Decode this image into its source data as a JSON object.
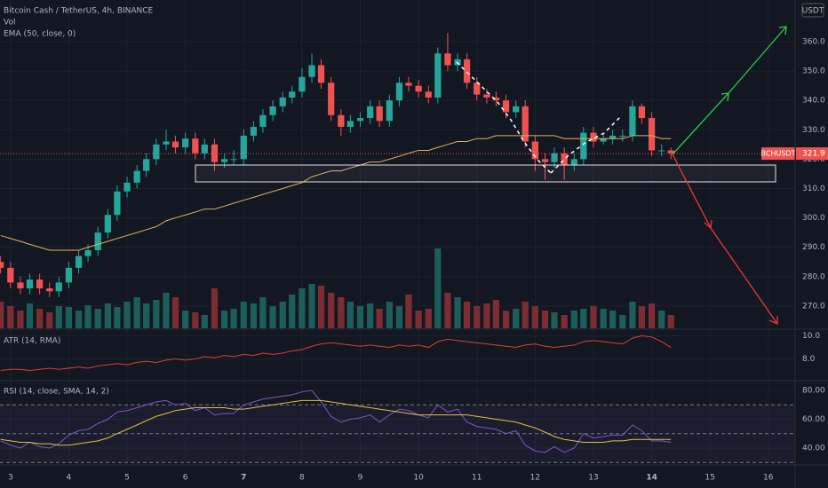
{
  "chart_data": [
    {
      "type": "candlestick",
      "title": "Bitcoin Cash / TetherUS, 4h, BINANCE",
      "axis_unit": "USDT",
      "x": [
        2.83,
        3,
        3.17,
        3.33,
        3.5,
        3.67,
        3.83,
        4,
        4.17,
        4.33,
        4.5,
        4.67,
        4.83,
        5,
        5.17,
        5.33,
        5.5,
        5.67,
        5.83,
        6,
        6.17,
        6.33,
        6.5,
        6.67,
        6.83,
        7,
        7.17,
        7.33,
        7.5,
        7.67,
        7.83,
        8,
        8.17,
        8.33,
        8.5,
        8.67,
        8.83,
        9,
        9.17,
        9.33,
        9.5,
        9.67,
        9.83,
        10,
        10.17,
        10.33,
        10.5,
        10.67,
        10.83,
        11,
        11.17,
        11.33,
        11.5,
        11.67,
        11.83,
        12,
        12.17,
        12.33,
        12.5,
        12.67,
        12.83,
        13,
        13.17,
        13.33,
        13.5,
        13.67,
        13.83,
        14,
        14.17,
        14.33
      ],
      "open": [
        285,
        283,
        278,
        276,
        279,
        276,
        275,
        278,
        283,
        287,
        289,
        295,
        301,
        309,
        312,
        316,
        320,
        325,
        326,
        324,
        327,
        322,
        325,
        319,
        320,
        320,
        328,
        331,
        335,
        338,
        341,
        343,
        348,
        352,
        346,
        335,
        331,
        333,
        334,
        338,
        333,
        340,
        346,
        345,
        343,
        341,
        356,
        352,
        354,
        346,
        342,
        341,
        340,
        336,
        338,
        326,
        320,
        319,
        322,
        318,
        320,
        329,
        326,
        327,
        328,
        328,
        338,
        334,
        323,
        323
      ],
      "high": [
        287,
        285,
        280,
        281,
        281,
        278,
        280,
        285,
        289,
        291,
        297,
        303,
        311,
        314,
        318,
        322,
        327,
        330,
        328,
        329,
        329,
        327,
        327,
        322,
        323,
        330,
        333,
        337,
        340,
        343,
        345,
        351,
        356,
        354,
        348,
        337,
        335,
        336,
        340,
        340,
        342,
        348,
        348,
        347,
        345,
        358,
        363,
        356,
        356,
        348,
        344,
        343,
        342,
        340,
        340,
        328,
        322,
        324,
        324,
        322,
        331,
        331,
        329,
        330,
        330,
        340,
        339,
        336,
        325,
        324
      ],
      "low": [
        281,
        276,
        274,
        274,
        274,
        273,
        273,
        276,
        281,
        285,
        287,
        293,
        299,
        307,
        310,
        314,
        318,
        323,
        322,
        322,
        320,
        320,
        316,
        317,
        318,
        318,
        326,
        329,
        333,
        336,
        339,
        341,
        346,
        344,
        333,
        328,
        329,
        331,
        332,
        331,
        331,
        338,
        343,
        341,
        339,
        339,
        350,
        350,
        344,
        340,
        339,
        338,
        334,
        334,
        324,
        316,
        313,
        317,
        313,
        316,
        318,
        324,
        325,
        325,
        326,
        326,
        332,
        321,
        321,
        320
      ],
      "close": [
        283,
        278,
        276,
        279,
        276,
        275,
        278,
        283,
        287,
        289,
        295,
        301,
        309,
        312,
        316,
        320,
        325,
        326,
        324,
        327,
        322,
        325,
        319,
        320,
        320,
        328,
        331,
        335,
        338,
        341,
        343,
        348,
        352,
        346,
        335,
        331,
        333,
        334,
        338,
        333,
        340,
        346,
        345,
        343,
        341,
        356,
        352,
        354,
        346,
        342,
        341,
        340,
        336,
        338,
        326,
        320,
        319,
        322,
        318,
        320,
        329,
        326,
        327,
        328,
        328,
        338,
        334,
        323,
        323,
        322
      ],
      "up_color": "#26a69a",
      "down_color": "#ef5350",
      "series": [
        {
          "name": "Vol",
          "type": "volume",
          "values": [
            30,
            25,
            20,
            28,
            22,
            18,
            25,
            24,
            20,
            26,
            22,
            28,
            24,
            30,
            35,
            28,
            32,
            40,
            35,
            20,
            18,
            15,
            45,
            20,
            22,
            30,
            28,
            35,
            25,
            30,
            38,
            45,
            50,
            48,
            40,
            35,
            30,
            25,
            28,
            22,
            30,
            25,
            38,
            20,
            22,
            90,
            40,
            35,
            30,
            25,
            28,
            32,
            20,
            22,
            30,
            25,
            20,
            18,
            15,
            20,
            22,
            25,
            22,
            20,
            15,
            30,
            25,
            28,
            20,
            15
          ]
        },
        {
          "name": "EMA (50, close, 0)",
          "type": "line",
          "color": "#e0b060",
          "values": [
            294,
            293,
            292,
            291,
            290,
            289,
            289,
            289,
            289,
            290,
            291,
            292,
            293,
            294,
            295,
            296,
            297,
            299,
            300,
            301,
            302,
            303,
            303,
            304,
            305,
            306,
            307,
            308,
            309,
            310,
            311,
            312,
            314,
            315,
            316,
            316,
            317,
            318,
            319,
            319,
            320,
            321,
            322,
            323,
            323,
            324,
            325,
            326,
            326,
            327,
            327,
            328,
            328,
            328,
            328,
            328,
            328,
            328,
            327,
            327,
            327,
            327,
            327,
            327,
            327,
            328,
            328,
            328,
            327,
            327
          ]
        }
      ],
      "last_price": {
        "label": "BCHUSDT",
        "value": 321.9
      },
      "xlim": [
        2.82,
        16.46
      ],
      "xticks": [
        3,
        4,
        5,
        6,
        7,
        8,
        9,
        10,
        11,
        12,
        13,
        14,
        15,
        16
      ],
      "ylim": [
        262.4,
        374.2
      ],
      "yticks": [
        {
          "value": 270,
          "label": "270.0"
        },
        {
          "value": 280,
          "label": "280.0"
        },
        {
          "value": 290,
          "label": "290.0"
        },
        {
          "value": 300,
          "label": "300.0"
        },
        {
          "value": 310,
          "label": "310.0"
        },
        {
          "value": 320,
          "label": "320.0"
        },
        {
          "value": 330,
          "label": "330.0"
        },
        {
          "value": 340,
          "label": "340.0"
        },
        {
          "value": 350,
          "label": "350.0"
        },
        {
          "value": 360,
          "label": "360.0"
        }
      ]
    },
    {
      "type": "line",
      "series": [
        {
          "name": "ATR (14, RMA)",
          "color": "#e53935",
          "values": [
            7.0,
            7.1,
            7.1,
            7.0,
            7.1,
            7.2,
            7.1,
            7.2,
            7.3,
            7.2,
            7.4,
            7.5,
            7.6,
            7.5,
            7.7,
            7.8,
            7.7,
            7.9,
            8.0,
            7.9,
            8.0,
            8.2,
            8.1,
            8.3,
            8.2,
            8.4,
            8.3,
            8.5,
            8.4,
            8.5,
            8.7,
            8.8,
            9.1,
            9.3,
            9.4,
            9.3,
            9.2,
            9.1,
            9.2,
            9.1,
            9.0,
            9.2,
            9.1,
            9.2,
            9.0,
            9.5,
            9.7,
            9.6,
            9.5,
            9.4,
            9.3,
            9.2,
            9.1,
            9.0,
            9.2,
            9.3,
            9.1,
            9.0,
            9.1,
            9.2,
            9.5,
            9.6,
            9.5,
            9.4,
            9.3,
            9.8,
            10.0,
            9.9,
            9.5,
            9.0
          ]
        }
      ],
      "ylim": [
        6.2,
        10.5
      ],
      "yticks": [
        {
          "value": 10,
          "label": "10.0"
        },
        {
          "value": 8,
          "label": "8.0"
        }
      ]
    },
    {
      "type": "line",
      "series": [
        {
          "name": "RSI (14, close, SMA, 14, 2)",
          "color": "#7e57c2",
          "values": [
            45,
            42,
            40,
            44,
            41,
            40,
            43,
            49,
            52,
            53,
            57,
            60,
            65,
            66,
            68,
            70,
            72,
            73,
            70,
            71,
            66,
            68,
            63,
            64,
            64,
            70,
            72,
            74,
            75,
            76,
            77,
            79,
            80,
            72,
            62,
            58,
            60,
            61,
            63,
            58,
            63,
            67,
            66,
            63,
            61,
            70,
            65,
            67,
            58,
            55,
            54,
            53,
            50,
            52,
            42,
            38,
            37,
            41,
            37,
            40,
            50,
            47,
            48,
            49,
            49,
            56,
            52,
            45,
            45,
            44
          ]
        },
        {
          "color": "#e0c040",
          "values": [
            46,
            45,
            44,
            44,
            43,
            43,
            42,
            42,
            43,
            44,
            45,
            47,
            50,
            53,
            56,
            59,
            62,
            64,
            66,
            67,
            68,
            68,
            68,
            68,
            67,
            67,
            68,
            69,
            70,
            71,
            72,
            73,
            73,
            73,
            72,
            71,
            70,
            69,
            68,
            67,
            66,
            65,
            64,
            63,
            63,
            63,
            63,
            63,
            63,
            62,
            61,
            60,
            59,
            58,
            56,
            54,
            51,
            48,
            46,
            45,
            44,
            44,
            44,
            45,
            45,
            46,
            46,
            46,
            46,
            46
          ]
        }
      ],
      "bands": [
        70,
        50,
        30
      ],
      "ylim": [
        29.5,
        86.2
      ],
      "yticks": [
        {
          "value": 80,
          "label": "80.00"
        },
        {
          "value": 60,
          "label": "60.00"
        },
        {
          "value": 40,
          "label": "40.00"
        }
      ]
    }
  ]
}
